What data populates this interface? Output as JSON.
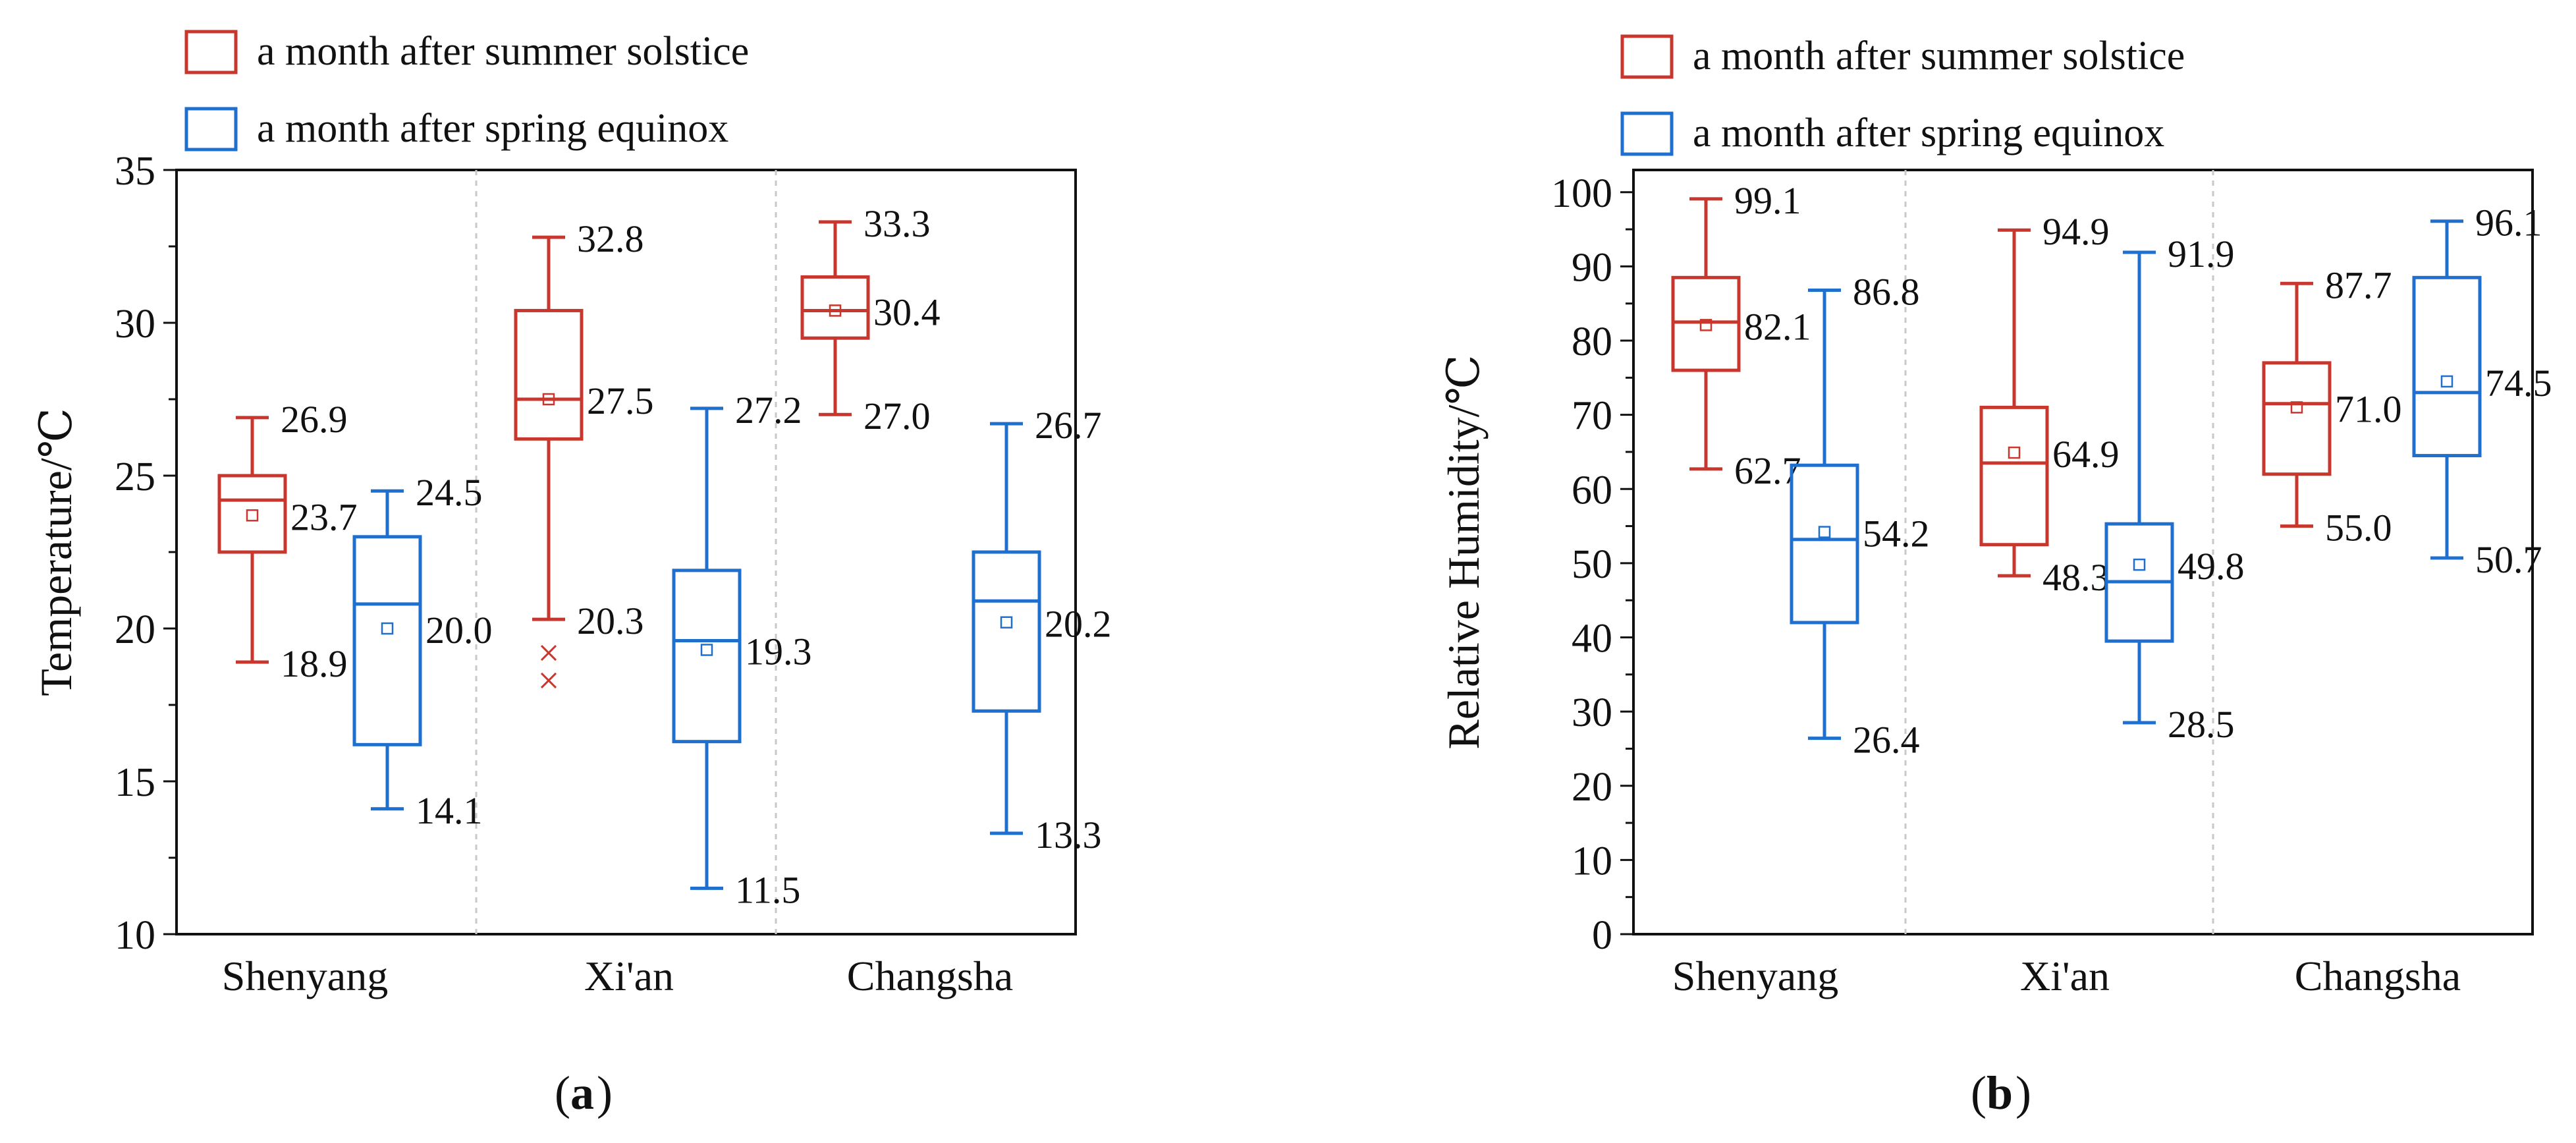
{
  "colors": {
    "summer": "#c8372d",
    "spring": "#1f6fcf",
    "axis": "#111111",
    "separator": "#c8c8c8"
  },
  "panels": [
    {
      "label": "(a)",
      "letter": "a",
      "legend": {
        "summer": "a month after summer solstice",
        "spring": "a month after spring equinox"
      }
    },
    {
      "label": "(b)",
      "letter": "b",
      "legend": {
        "summer": "a month after summer solstice",
        "spring": "a month after spring equinox"
      }
    }
  ],
  "chart_data": [
    {
      "type": "box",
      "panel": "(a)",
      "ylabel": "Temperature/℃",
      "xlabel": "",
      "ylim": [
        10,
        35
      ],
      "yticks": [
        10,
        15,
        20,
        25,
        30,
        35
      ],
      "categories": [
        "Shenyang",
        "Xi'an",
        "Changsha"
      ],
      "series": [
        {
          "name": "a month after summer solstice",
          "color_key": "summer",
          "boxes": [
            {
              "category": "Shenyang",
              "min": 18.9,
              "q1": 22.5,
              "median": 24.2,
              "q3": 25.0,
              "max": 26.9,
              "mean": 23.7,
              "labels": {
                "max": "26.9",
                "mean": "23.7",
                "min": "18.9"
              },
              "outliers": []
            },
            {
              "category": "Xi'an",
              "min": 20.3,
              "q1": 26.2,
              "median": 27.5,
              "q3": 30.4,
              "max": 32.8,
              "mean": 27.5,
              "labels": {
                "max": "32.8",
                "mean": "27.5",
                "min": "20.3"
              },
              "outliers": [
                19.2,
                18.3
              ]
            },
            {
              "category": "Changsha",
              "min": 27.0,
              "q1": 29.5,
              "median": 30.4,
              "q3": 31.5,
              "max": 33.3,
              "mean": 30.4,
              "labels": {
                "max": "33.3",
                "mean": "30.4",
                "min": "27.0"
              },
              "outliers": []
            }
          ]
        },
        {
          "name": "a month after spring equinox",
          "color_key": "spring",
          "boxes": [
            {
              "category": "Shenyang",
              "min": 14.1,
              "q1": 16.2,
              "median": 20.8,
              "q3": 23.0,
              "max": 24.5,
              "mean": 20.0,
              "labels": {
                "max": "24.5",
                "mean": "20.0",
                "min": "14.1"
              },
              "outliers": []
            },
            {
              "category": "Xi'an",
              "min": 11.5,
              "q1": 16.3,
              "median": 19.6,
              "q3": 21.9,
              "max": 27.2,
              "mean": 19.3,
              "labels": {
                "max": "27.2",
                "mean": "19.3",
                "min": "11.5"
              },
              "outliers": []
            },
            {
              "category": "Changsha",
              "min": 13.3,
              "q1": 17.3,
              "median": 20.9,
              "q3": 22.5,
              "max": 26.7,
              "mean": 20.2,
              "labels": {
                "max": "26.7",
                "mean": "20.2",
                "min": "13.3"
              },
              "outliers": []
            }
          ]
        }
      ]
    },
    {
      "type": "box",
      "panel": "(b)",
      "ylabel": "Relative Humidity/℃",
      "xlabel": "",
      "ylim": [
        0,
        100
      ],
      "yticks": [
        0,
        10,
        20,
        30,
        40,
        50,
        60,
        70,
        80,
        90,
        100
      ],
      "categories": [
        "Shenyang",
        "Xi'an",
        "Changsha"
      ],
      "series": [
        {
          "name": "a month after summer solstice",
          "color_key": "summer",
          "boxes": [
            {
              "category": "Shenyang",
              "min": 62.7,
              "q1": 76.0,
              "median": 82.5,
              "q3": 88.5,
              "max": 99.1,
              "mean": 82.1,
              "labels": {
                "max": "99.1",
                "mean": "82.1",
                "min": "62.7"
              },
              "outliers": []
            },
            {
              "category": "Xi'an",
              "min": 48.3,
              "q1": 52.5,
              "median": 63.5,
              "q3": 71.0,
              "max": 94.9,
              "mean": 64.9,
              "labels": {
                "max": "94.9",
                "mean": "64.9",
                "min": "48.3"
              },
              "outliers": []
            },
            {
              "category": "Changsha",
              "min": 55.0,
              "q1": 62.0,
              "median": 71.5,
              "q3": 77.0,
              "max": 87.7,
              "mean": 71.0,
              "labels": {
                "max": "87.7",
                "mean": "71.0",
                "min": "55.0"
              },
              "outliers": []
            }
          ]
        },
        {
          "name": "a month after spring equinox",
          "color_key": "spring",
          "boxes": [
            {
              "category": "Shenyang",
              "min": 26.4,
              "q1": 42.0,
              "median": 53.2,
              "q3": 63.2,
              "max": 86.8,
              "mean": 54.2,
              "labels": {
                "max": "86.8",
                "mean": "54.2",
                "min": "26.4"
              },
              "outliers": []
            },
            {
              "category": "Xi'an",
              "min": 28.5,
              "q1": 39.5,
              "median": 47.5,
              "q3": 55.3,
              "max": 91.9,
              "mean": 49.8,
              "labels": {
                "max": "91.9",
                "mean": "49.8",
                "min": "28.5"
              },
              "outliers": []
            },
            {
              "category": "Changsha",
              "min": 50.7,
              "q1": 64.5,
              "median": 73.0,
              "q3": 88.5,
              "max": 96.1,
              "mean": 74.5,
              "labels": {
                "max": "96.1",
                "mean": "74.5",
                "min": "50.7"
              },
              "outliers": []
            }
          ]
        }
      ]
    }
  ]
}
